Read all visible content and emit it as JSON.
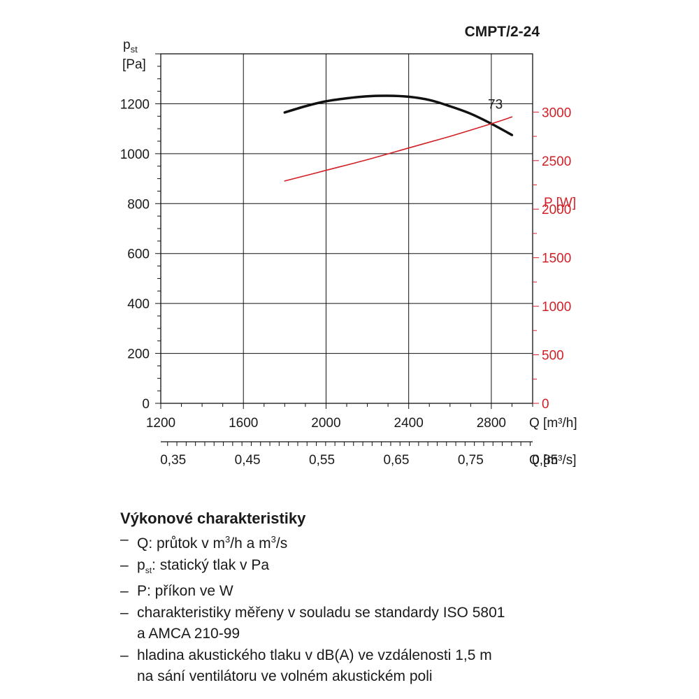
{
  "chart_data": {
    "type": "line",
    "title": "CMPT/2-24",
    "ylabel": {
      "main": "p",
      "sub": "st",
      "unit": "[Pa]"
    },
    "y2label": "P [W]",
    "xlabel": "Q [m³/h]",
    "x2label": "Q [m³/s]",
    "xlim": [
      1200,
      3000
    ],
    "ylim": [
      0,
      1400
    ],
    "y2lim": [
      0,
      3000
    ],
    "x_ticks": [
      "1200",
      "1600",
      "2000",
      "2400",
      "2800"
    ],
    "x_tick_values": [
      1200,
      1600,
      2000,
      2400,
      2800
    ],
    "y_ticks": [
      "0",
      "200",
      "400",
      "600",
      "800",
      "1000",
      "1200"
    ],
    "y_tick_values": [
      0,
      200,
      400,
      600,
      800,
      1000,
      1200
    ],
    "y2_ticks": [
      "0",
      "500",
      "1000",
      "1500",
      "2000",
      "2500",
      "3000"
    ],
    "y2_tick_values": [
      0,
      500,
      1000,
      1500,
      2000,
      2500,
      3000
    ],
    "x2_ticks": [
      "0,35",
      "0,45",
      "0,55",
      "0,65",
      "0,75",
      "0,85"
    ],
    "x2_tick_values": [
      0.35,
      0.45,
      0.55,
      0.65,
      0.75,
      0.85
    ],
    "grid": true,
    "series": [
      {
        "name": "73",
        "axis": "left",
        "color": "#111111",
        "x": [
          1800,
          1900,
          2000,
          2100,
          2200,
          2300,
          2400,
          2500,
          2600,
          2700,
          2800,
          2900
        ],
        "y": [
          1165,
          1190,
          1210,
          1222,
          1230,
          1232,
          1228,
          1215,
          1190,
          1160,
          1120,
          1075
        ]
      },
      {
        "axis": "right",
        "color": "#d21f26",
        "x": [
          1800,
          2000,
          2200,
          2400,
          2600,
          2800,
          2900
        ],
        "y": [
          2290,
          2400,
          2510,
          2630,
          2750,
          2880,
          2950
        ]
      }
    ]
  },
  "notes": {
    "heading": "Výkonové charakteristiky",
    "items": [
      {
        "pre": "Q: průtok v m",
        "sup": "3",
        "mid": "/h a m",
        "sup2": "3",
        "post": "/s"
      },
      {
        "pre": "p",
        "sub": "st",
        "post": ": statický tlak v Pa"
      },
      {
        "pre": "P: příkon ve W"
      },
      {
        "pre": "charakteristiky měřeny v souladu se standardy ISO 5801",
        "line2": "a AMCA 210-99"
      },
      {
        "pre": "hladina akustického tlaku v dB(A) ve vzdálenosti 1,5 m",
        "line2": "na sání ventilátoru ve volném akustickém poli"
      }
    ]
  }
}
